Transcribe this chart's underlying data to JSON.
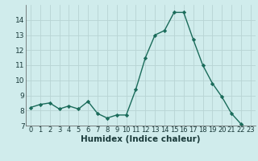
{
  "x": [
    0,
    1,
    2,
    3,
    4,
    5,
    6,
    7,
    8,
    9,
    10,
    11,
    12,
    13,
    14,
    15,
    16,
    17,
    18,
    19,
    20,
    21,
    22,
    23
  ],
  "y": [
    8.2,
    8.4,
    8.5,
    8.1,
    8.3,
    8.1,
    8.6,
    7.8,
    7.5,
    7.7,
    7.7,
    9.4,
    11.5,
    13.0,
    13.3,
    14.5,
    14.5,
    12.7,
    11.0,
    9.8,
    8.9,
    7.8,
    7.1,
    6.6
  ],
  "line_color": "#1a6b5a",
  "bg_color": "#d0ecec",
  "grid_color": "#b8d4d4",
  "xlabel": "Humidex (Indice chaleur)",
  "ylim": [
    7,
    15
  ],
  "xlim": [
    -0.5,
    23.5
  ],
  "yticks": [
    7,
    8,
    9,
    10,
    11,
    12,
    13,
    14
  ],
  "xtick_labels": [
    "0",
    "1",
    "2",
    "3",
    "4",
    "5",
    "6",
    "7",
    "8",
    "9",
    "10",
    "11",
    "12",
    "13",
    "14",
    "15",
    "16",
    "17",
    "18",
    "19",
    "20",
    "21",
    "22",
    "23"
  ],
  "label_fontsize": 7.5,
  "tick_fontsize": 6.5
}
